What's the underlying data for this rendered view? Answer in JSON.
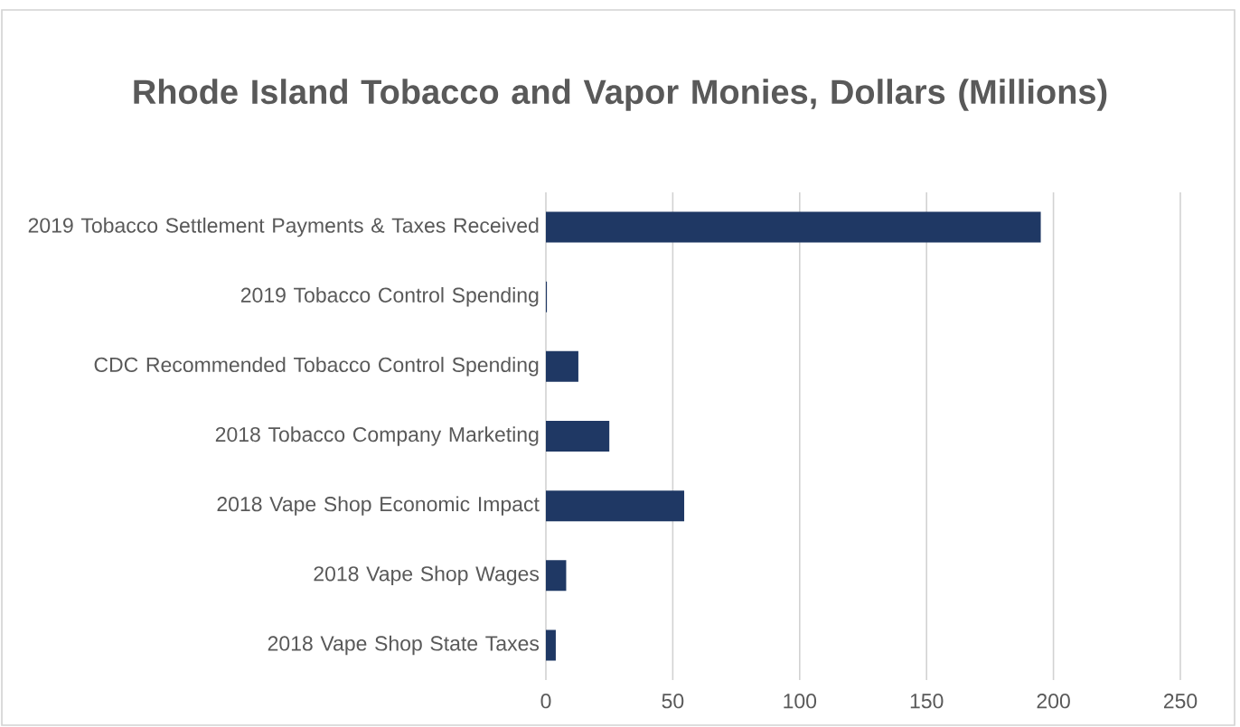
{
  "chart_data": {
    "type": "bar",
    "orientation": "horizontal",
    "title": "Rhode Island Tobacco and Vapor Monies, Dollars (Millions)",
    "categories": [
      "2019 Tobacco Settlement Payments & Taxes Received",
      "2019 Tobacco Control Spending",
      "CDC Recommended Tobacco Control Spending",
      "2018 Tobacco Company Marketing",
      "2018 Vape Shop Economic Impact",
      "2018 Vape Shop Wages",
      "2018 Vape Shop State Taxes"
    ],
    "values": [
      195,
      0.4,
      12.8,
      25,
      54.5,
      8,
      3.9
    ],
    "color": "#1f3864",
    "xlim": [
      0,
      250
    ],
    "xticks": [
      0,
      50,
      100,
      150,
      200,
      250
    ],
    "grid": "x"
  }
}
